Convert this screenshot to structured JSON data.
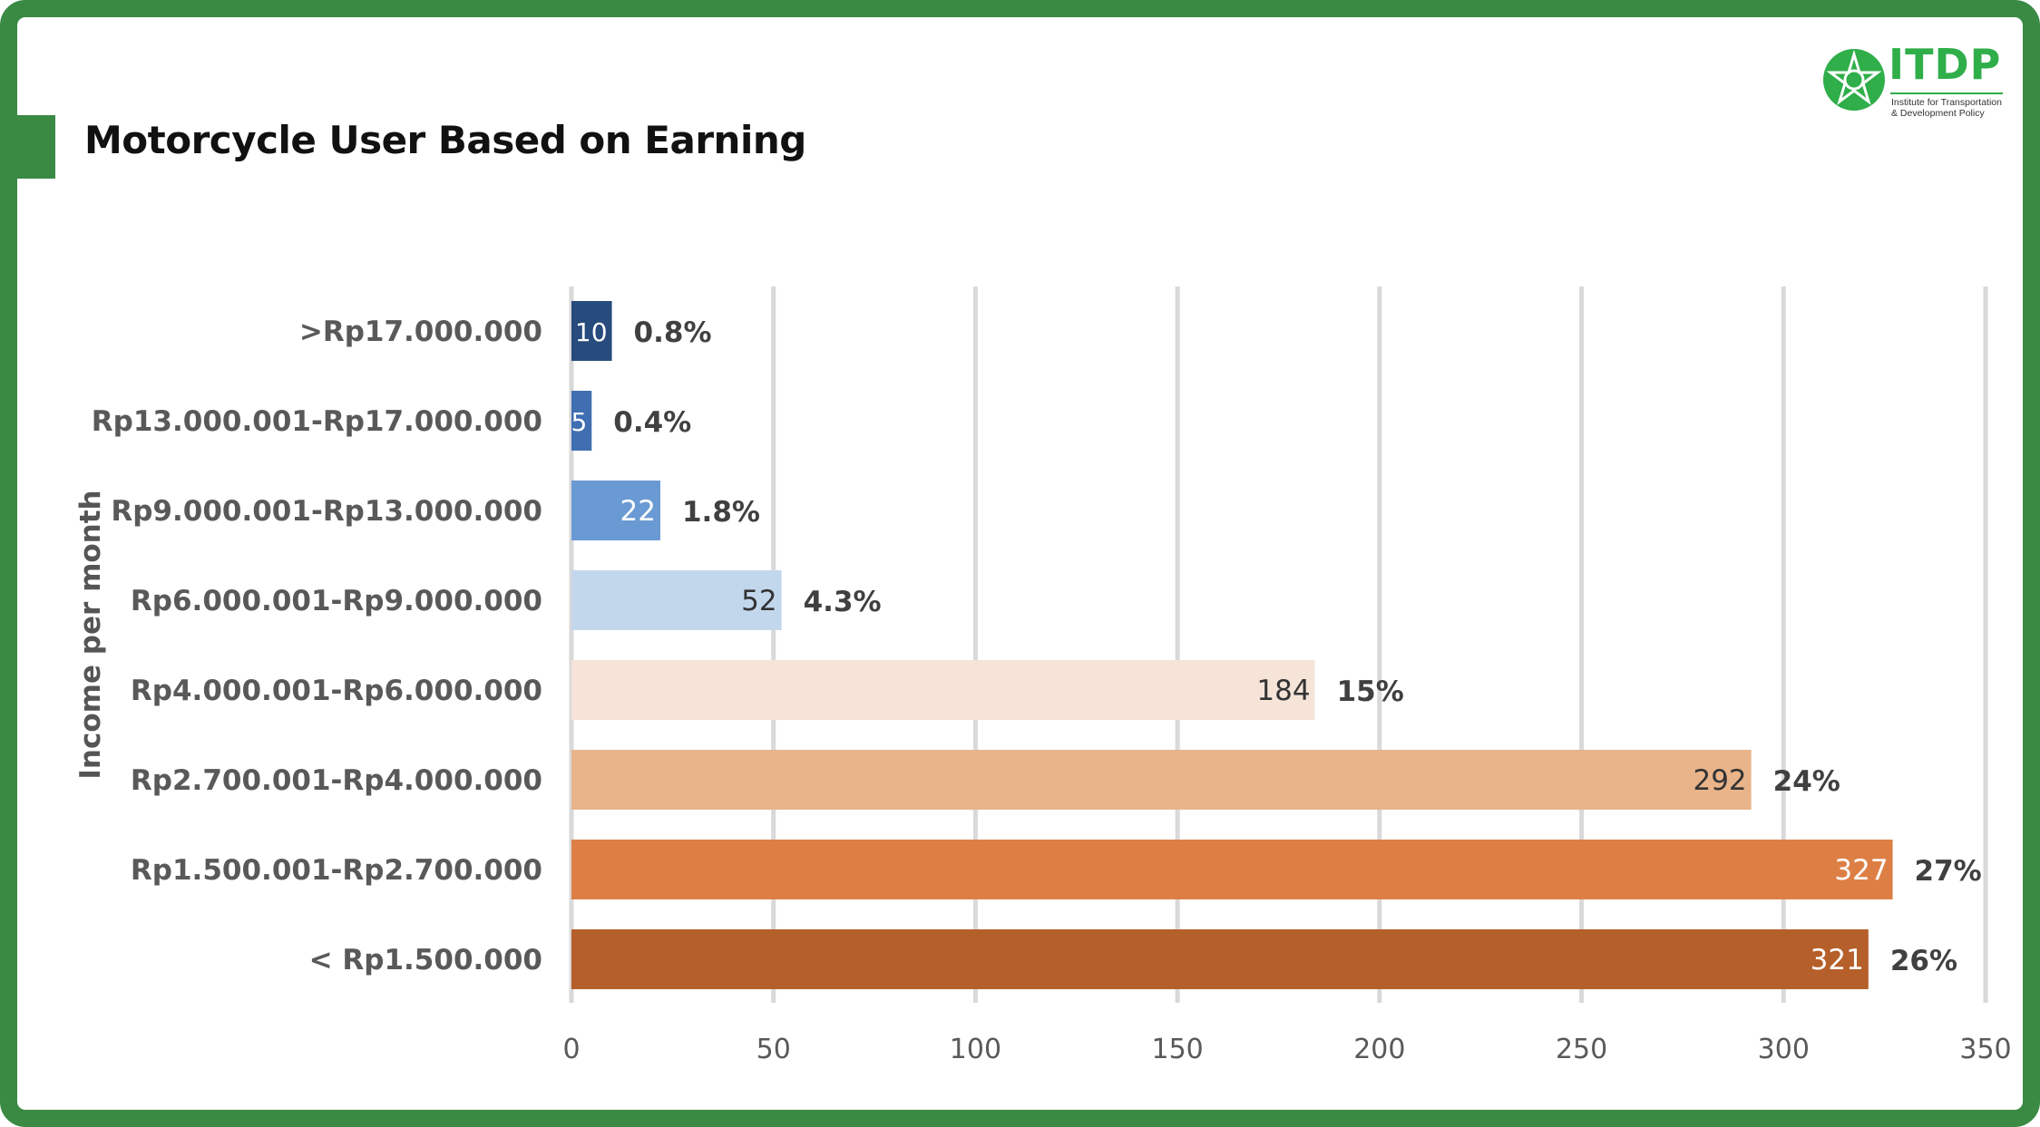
{
  "header": {
    "title": "Motorcycle User Based on Earning"
  },
  "logo": {
    "wordmark": "ITDP",
    "tagline_line1": "Institute for Transportation",
    "tagline_line2": "& Development Policy",
    "color": "#2fae4a"
  },
  "colors": {
    "frame": "#3a8a44",
    "grid": "#d9d9d9",
    "axis_text": "#595959"
  },
  "chart_data": {
    "type": "bar",
    "orientation": "horizontal",
    "title": "Motorcycle User Based on Earning",
    "xlabel": "",
    "ylabel": "Income per month",
    "xlim": [
      0,
      350
    ],
    "xticks": [
      0,
      50,
      100,
      150,
      200,
      250,
      300,
      350
    ],
    "grid": true,
    "legend": "none",
    "categories": [
      ">Rp17.000.000",
      "Rp13.000.001-Rp17.000.000",
      "Rp9.000.001-Rp13.000.000",
      "Rp6.000.001-Rp9.000.000",
      "Rp4.000.001-Rp6.000.000",
      "Rp2.700.001-Rp4.000.000",
      "Rp1.500.001-Rp2.700.000",
      "< Rp1.500.000"
    ],
    "values": [
      10,
      5,
      22,
      52,
      184,
      292,
      327,
      321
    ],
    "value_labels": [
      "10",
      "5",
      "22",
      "52",
      "184",
      "292",
      "327",
      "321"
    ],
    "percent_labels": [
      "0.8%",
      "0.4%",
      "1.8%",
      "4.3%",
      "15%",
      "24%",
      "27%",
      "26%"
    ],
    "bar_colors": [
      "#264b7c",
      "#3f6eb1",
      "#6a9ad3",
      "#c3d7ec",
      "#f5e4d7",
      "#e9b48a",
      "#dd7f45",
      "#b55f2a"
    ],
    "value_label_colors": [
      "#ffffff",
      "#ffffff",
      "#ffffff",
      "#333333",
      "#333333",
      "#333333",
      "#ffffff",
      "#ffffff"
    ]
  }
}
